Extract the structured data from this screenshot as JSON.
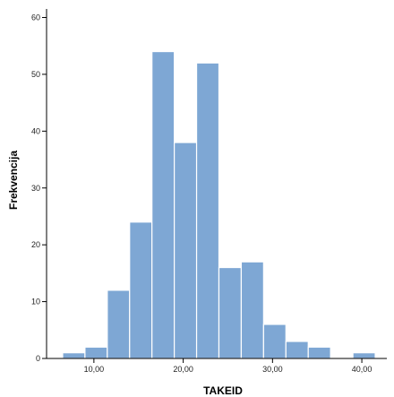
{
  "chart_data": {
    "type": "bar",
    "title": "",
    "xlabel": "TAKEID",
    "ylabel": "Frekvencija",
    "bins": [
      {
        "x0": 6.5,
        "x1": 9.0,
        "value": 1
      },
      {
        "x0": 9.0,
        "x1": 11.5,
        "value": 2
      },
      {
        "x0": 11.5,
        "x1": 14.0,
        "value": 12
      },
      {
        "x0": 14.0,
        "x1": 16.5,
        "value": 24
      },
      {
        "x0": 16.5,
        "x1": 19.0,
        "value": 54
      },
      {
        "x0": 19.0,
        "x1": 21.5,
        "value": 38
      },
      {
        "x0": 21.5,
        "x1": 24.0,
        "value": 52
      },
      {
        "x0": 24.0,
        "x1": 26.5,
        "value": 16
      },
      {
        "x0": 26.5,
        "x1": 29.0,
        "value": 17
      },
      {
        "x0": 29.0,
        "x1": 31.5,
        "value": 6
      },
      {
        "x0": 31.5,
        "x1": 34.0,
        "value": 3
      },
      {
        "x0": 34.0,
        "x1": 36.5,
        "value": 2
      },
      {
        "x0": 39.0,
        "x1": 41.5,
        "value": 1
      }
    ],
    "xlim": [
      4.7,
      42.8
    ],
    "ylim": [
      0,
      61.5
    ],
    "x_ticks": [
      {
        "value": 10,
        "label": "10,00"
      },
      {
        "value": 20,
        "label": "20,00"
      },
      {
        "value": 30,
        "label": "30,00"
      },
      {
        "value": 40,
        "label": "40,00"
      }
    ],
    "y_ticks": [
      {
        "value": 0,
        "label": "0"
      },
      {
        "value": 10,
        "label": "10"
      },
      {
        "value": 20,
        "label": "20"
      },
      {
        "value": 30,
        "label": "30"
      },
      {
        "value": 40,
        "label": "40"
      },
      {
        "value": 50,
        "label": "50"
      },
      {
        "value": 60,
        "label": "60"
      }
    ],
    "grid": false,
    "bar_color": "#7ea7d4",
    "bar_edge_color": "#ffffff",
    "axis_color": "#000000"
  }
}
